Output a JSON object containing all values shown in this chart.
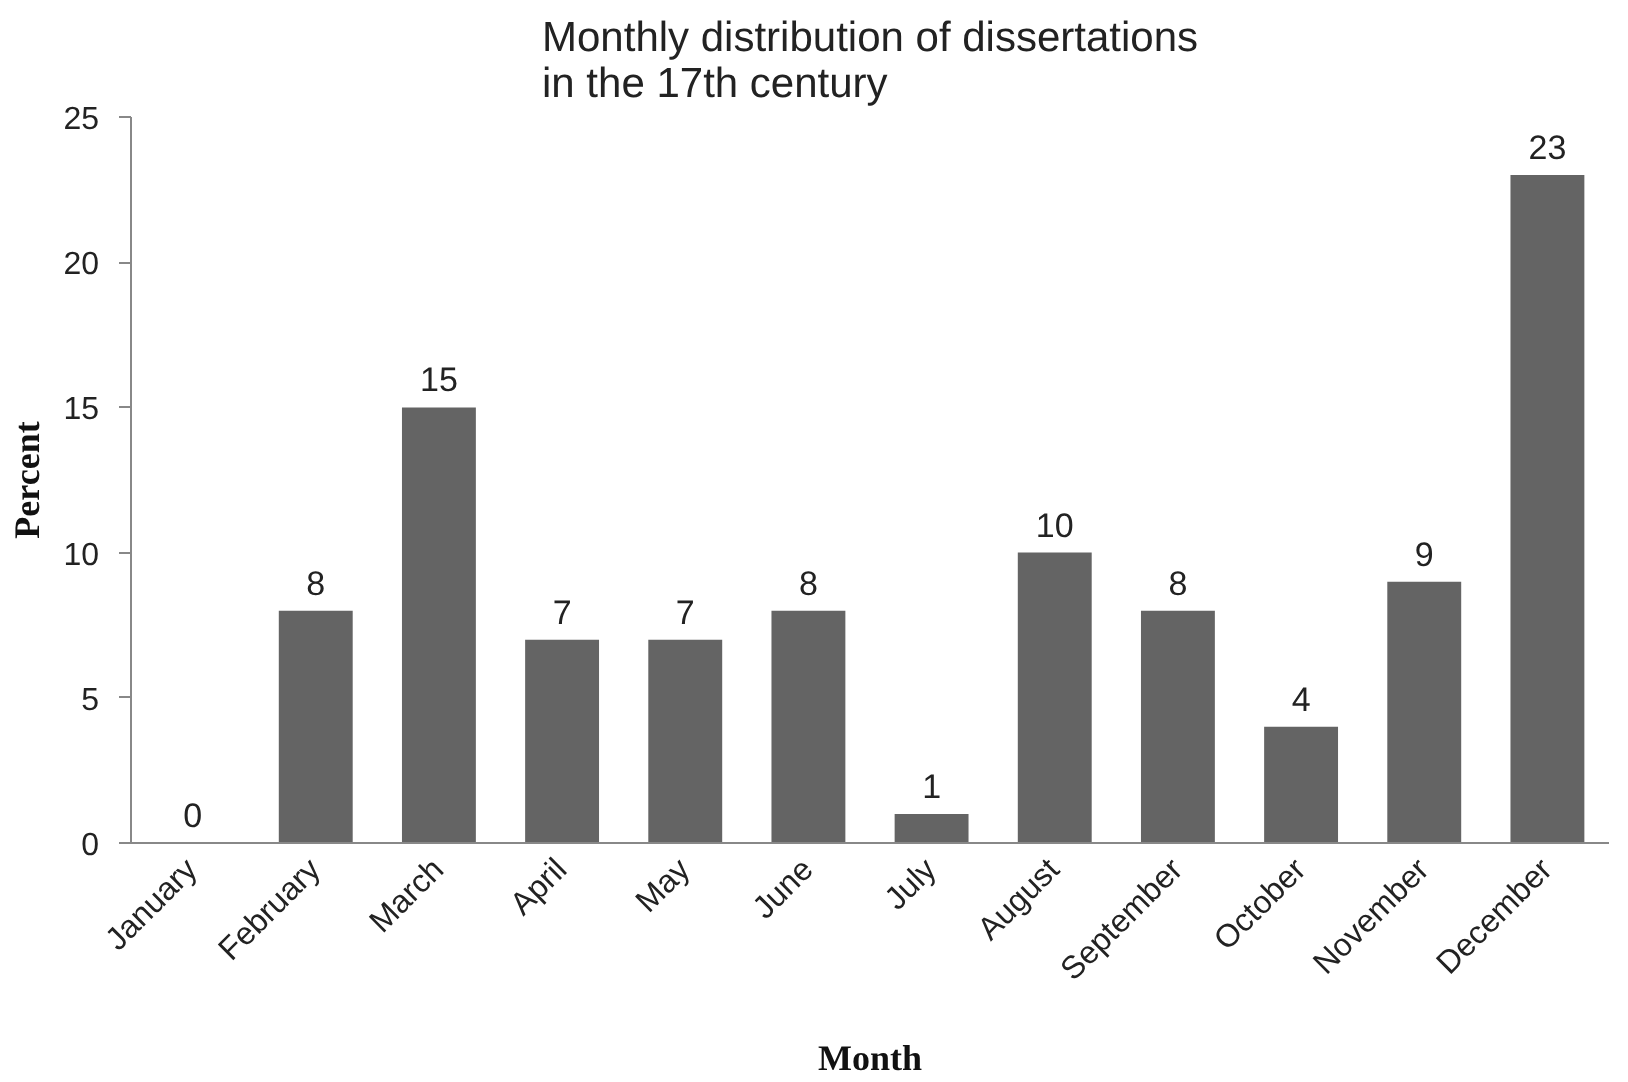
{
  "chart_data": {
    "type": "bar",
    "title": "Monthly distribution of dissertations in the 17th century",
    "xlabel": "Month",
    "ylabel": "Percent",
    "categories": [
      "January",
      "February",
      "March",
      "April",
      "May",
      "June",
      "July",
      "August",
      "September",
      "October",
      "November",
      "December"
    ],
    "values": [
      0,
      8,
      15,
      7,
      7,
      8,
      1,
      10,
      8,
      4,
      9,
      23
    ],
    "color": "#646464",
    "ylim": [
      0,
      25
    ],
    "yticks": [
      0,
      5,
      10,
      15,
      20,
      25
    ],
    "grid": false,
    "data_labels": true
  }
}
